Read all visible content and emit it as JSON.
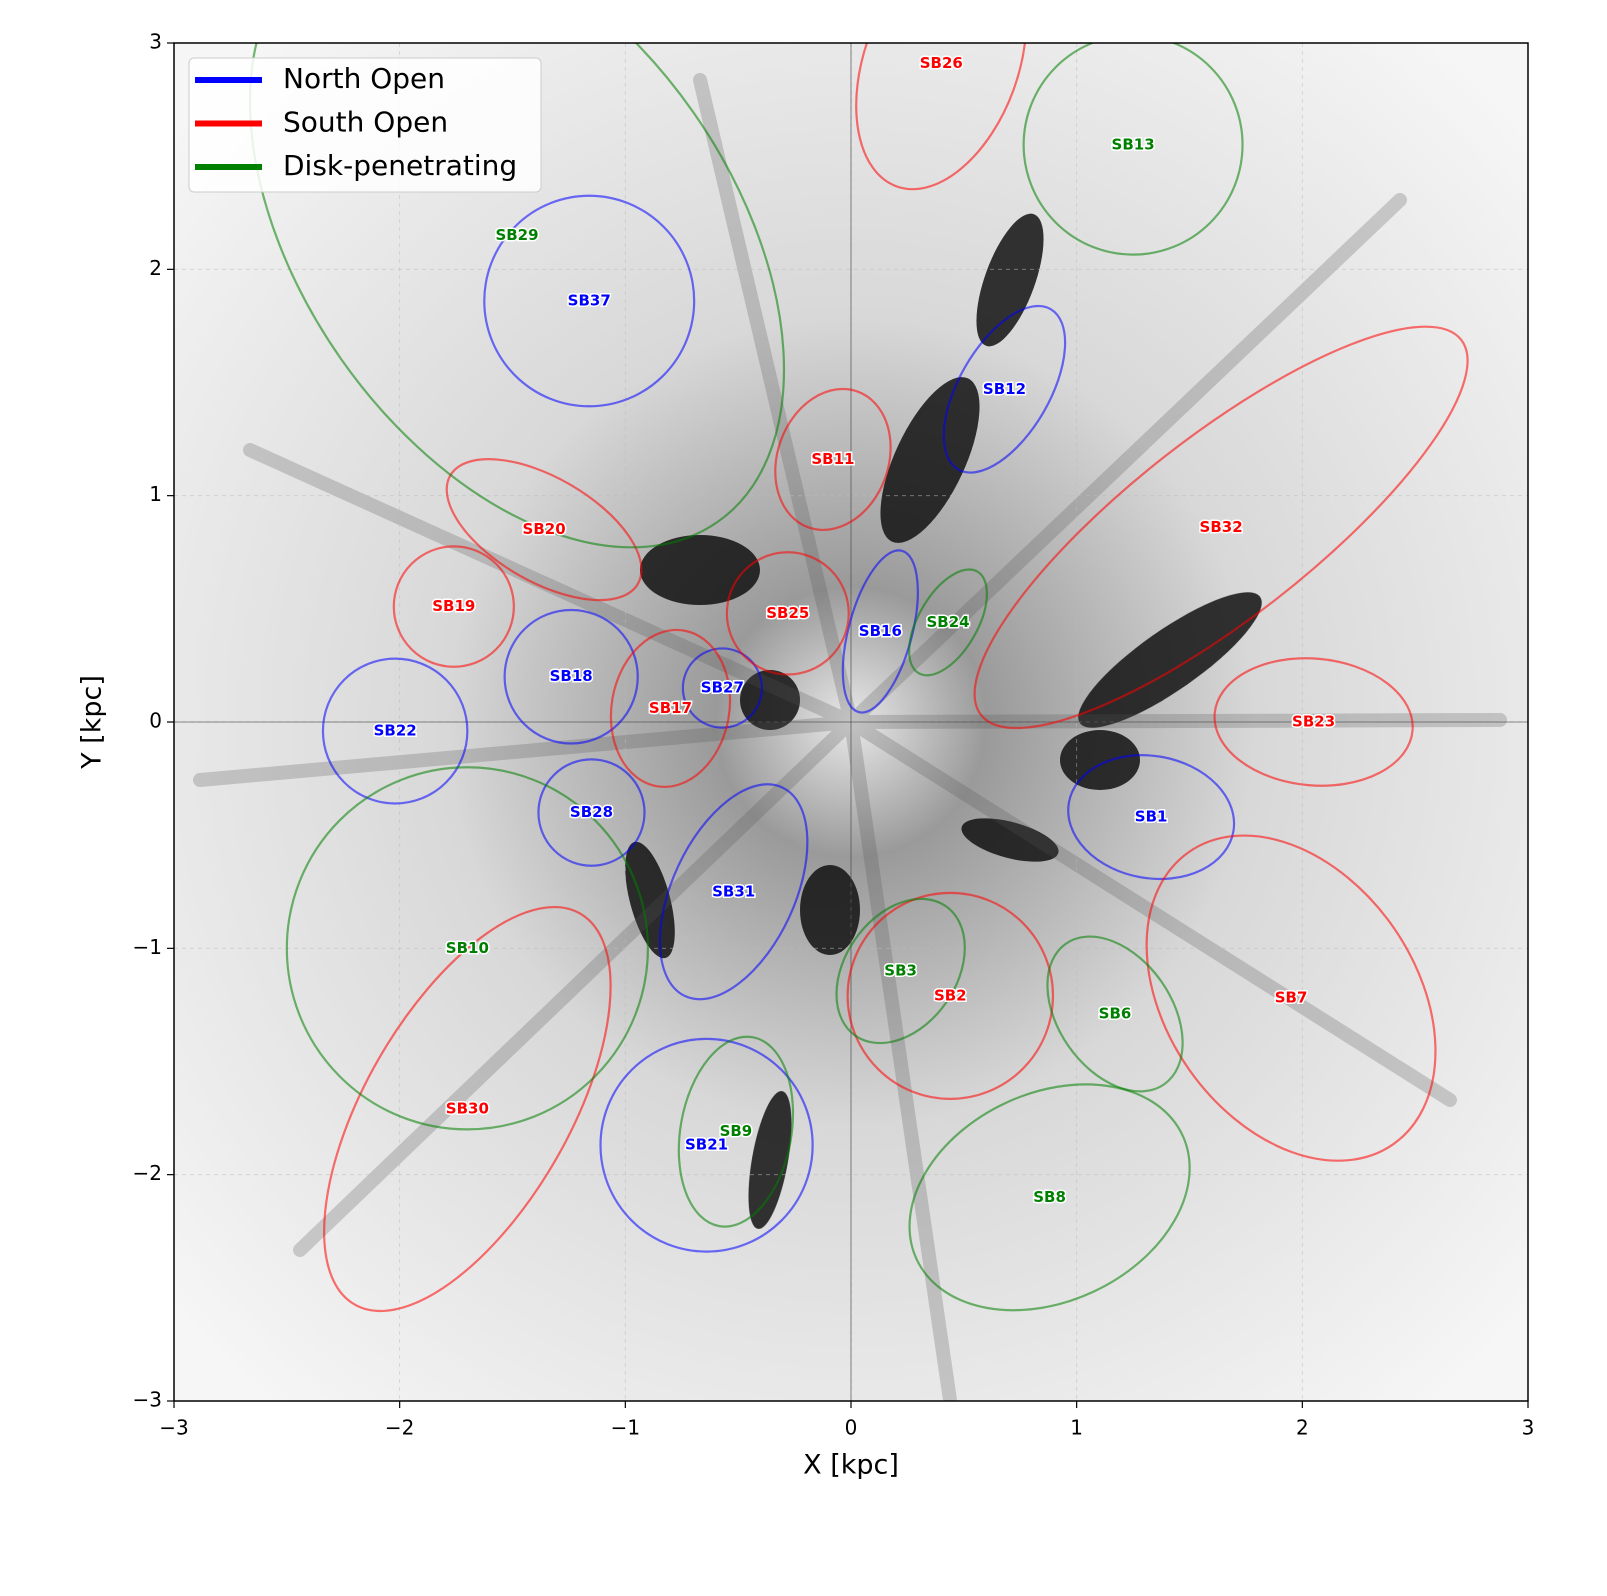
{
  "chart_data": {
    "type": "ellipse-map",
    "x_label": "X [kpc]",
    "y_label": "Y [kpc]",
    "xlim": [
      -3,
      3
    ],
    "ylim": [
      -3,
      3
    ],
    "xticks": [
      {
        "value": -3,
        "label": "−3"
      },
      {
        "value": -2,
        "label": "−2"
      },
      {
        "value": -1,
        "label": "−1"
      },
      0,
      1,
      2,
      3
    ],
    "yticks": [
      {
        "value": -3,
        "label": "−3"
      },
      {
        "value": -2,
        "label": "−2"
      },
      {
        "value": -1,
        "label": "−1"
      },
      0,
      1,
      2,
      3
    ],
    "grid": true,
    "legend_position": "upper-left",
    "series": [
      {
        "name": "North Open",
        "color": "#0000ff",
        "labels": [
          "SB1",
          "SB12",
          "SB16",
          "SB18",
          "SB21",
          "SB22",
          "SB27",
          "SB28",
          "SB31",
          "SB37"
        ],
        "x": [
          1.33,
          0.68,
          0.13,
          -1.24,
          -0.64,
          -2.02,
          -0.57,
          -1.15,
          -0.52,
          -1.16
        ],
        "y": [
          -0.42,
          1.47,
          0.4,
          0.2,
          -1.87,
          -0.04,
          0.15,
          -0.4,
          -0.75,
          1.86
        ],
        "semi_major": [
          0.37,
          0.41,
          0.37,
          0.295,
          0.47,
          0.32,
          0.175,
          0.235,
          0.51,
          0.465
        ],
        "semi_minor": [
          0.27,
          0.2,
          0.14,
          0.295,
          0.47,
          0.32,
          0.175,
          0.235,
          0.27,
          0.465
        ],
        "angle": [
          -10,
          60,
          75,
          0,
          0,
          0,
          0,
          0,
          65,
          0
        ]
      },
      {
        "name": "South Open",
        "color": "#ff0000",
        "labels": [
          "SB2",
          "SB7",
          "SB11",
          "SB17",
          "SB19",
          "SB20",
          "SB23",
          "SB25",
          "SB26",
          "SB30",
          "SB32"
        ],
        "x": [
          0.44,
          1.95,
          -0.08,
          -0.8,
          -1.76,
          -1.36,
          2.05,
          -0.28,
          0.4,
          -1.7,
          1.64
        ],
        "y": [
          -1.21,
          -1.22,
          1.16,
          0.06,
          0.51,
          0.85,
          0.0,
          0.48,
          2.91,
          -1.71,
          0.86
        ],
        "semi_major": [
          0.455,
          0.79,
          0.32,
          0.35,
          0.266,
          0.48,
          0.44,
          0.27,
          0.58,
          1.0,
          1.35
        ],
        "semi_minor": [
          0.455,
          0.55,
          0.245,
          0.26,
          0.266,
          0.23,
          0.28,
          0.27,
          0.34,
          0.45,
          0.4
        ],
        "angle": [
          0,
          -55,
          70,
          80,
          0,
          -30,
          -5,
          0,
          70,
          60,
          38
        ]
      },
      {
        "name": "Disk-penetrating",
        "color": "#008000",
        "labels": [
          "SB3",
          "SB6",
          "SB8",
          "SB9",
          "SB10",
          "SB13",
          "SB24",
          "SB29"
        ],
        "x": [
          0.22,
          1.17,
          0.88,
          -0.51,
          -1.7,
          1.25,
          0.43,
          -1.48
        ],
        "y": [
          -1.1,
          -1.29,
          -2.1,
          -1.81,
          -1.0,
          2.55,
          0.44,
          2.15
        ],
        "semi_major": [
          0.35,
          0.38,
          0.65,
          0.425,
          0.8,
          0.485,
          0.26,
          1.55
        ],
        "semi_minor": [
          0.245,
          0.25,
          0.46,
          0.245,
          0.8,
          0.485,
          0.13,
          0.95
        ],
        "angle": [
          55,
          -55,
          25,
          80,
          0,
          0,
          60,
          -55
        ]
      }
    ]
  }
}
